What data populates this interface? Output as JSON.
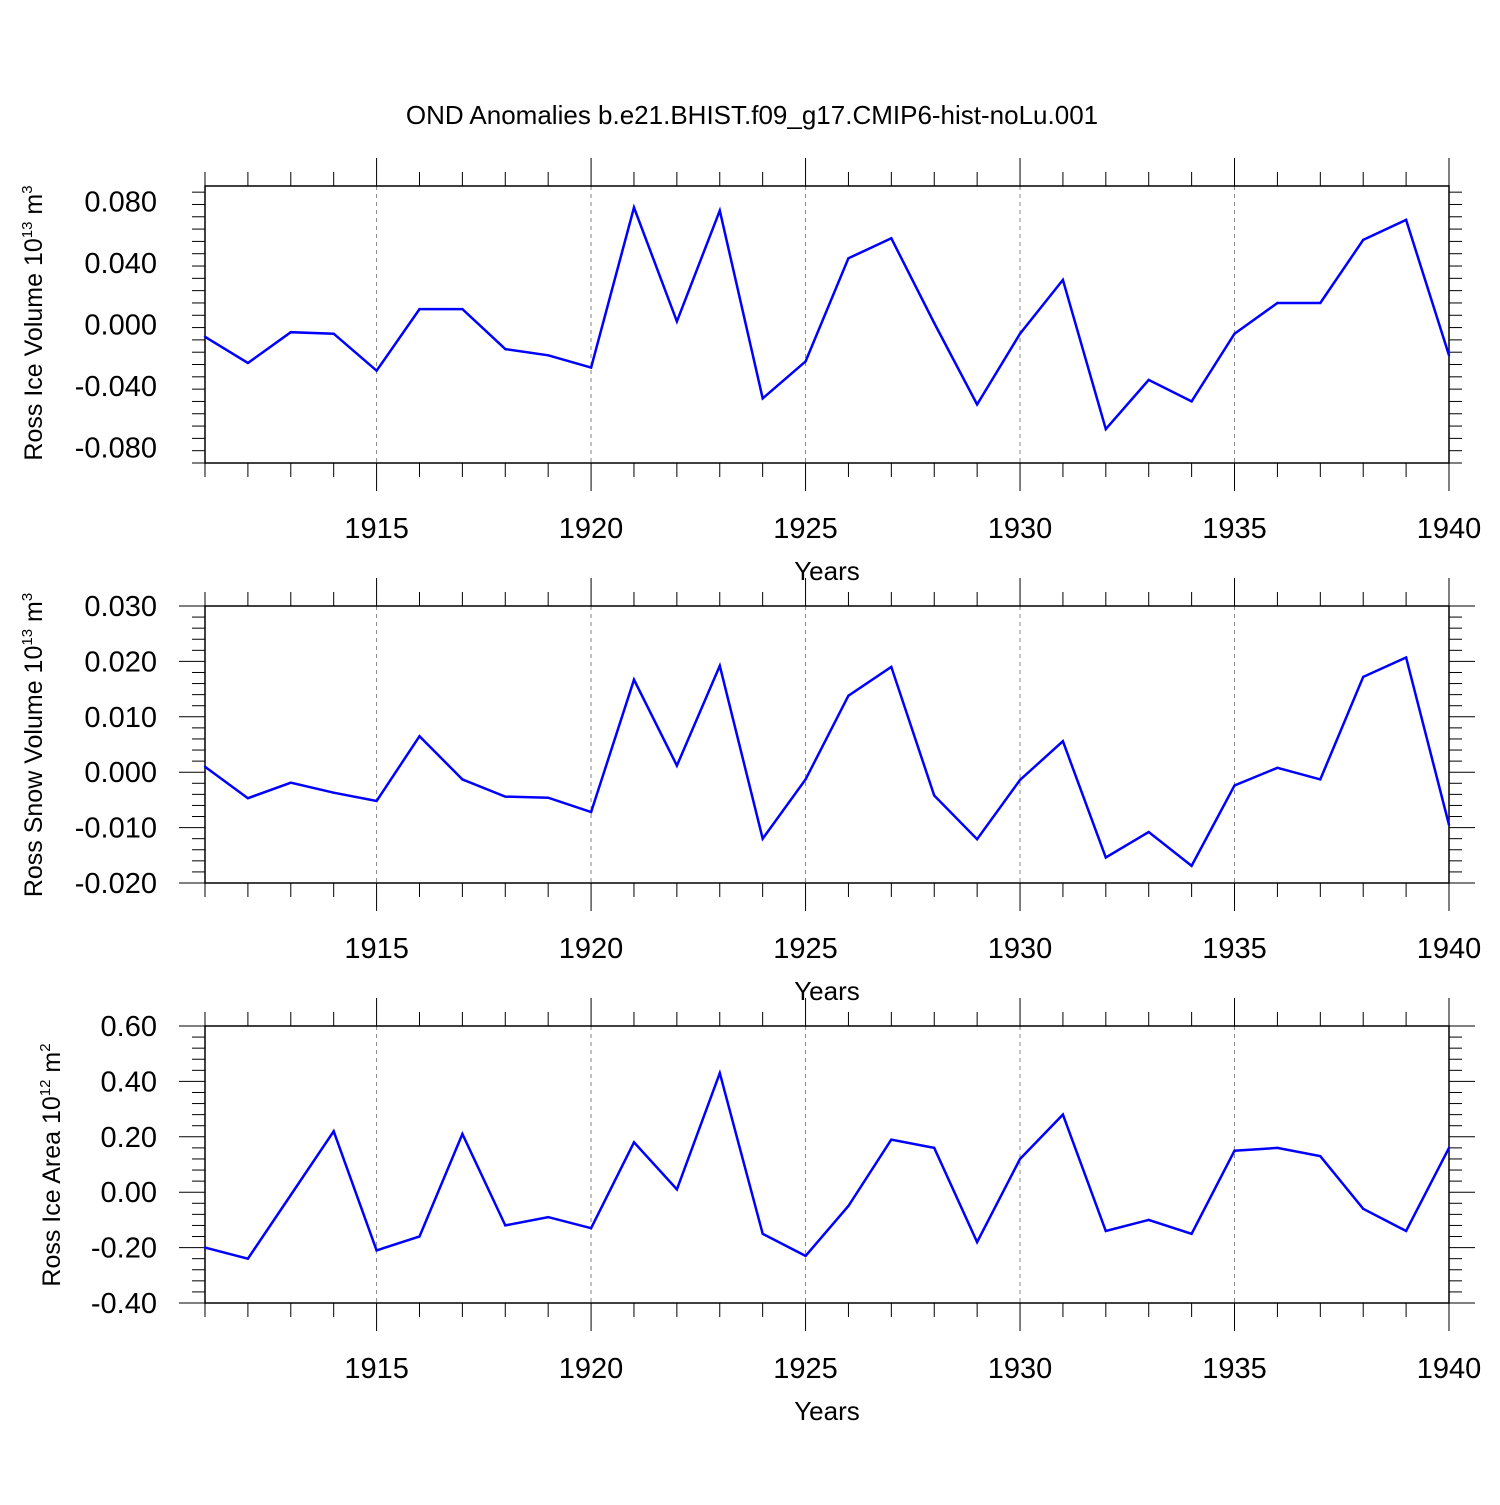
{
  "title": "OND Anomalies b.e21.BHIST.f09_g17.CMIP6-hist-noLu.001",
  "line_color": "#0000ff",
  "grid_color": "#888888",
  "chart_data": [
    {
      "type": "line",
      "ylabel_main": "Ross Ice Volume 10",
      "ylabel_exp": "13",
      "ylabel_unit": " m",
      "ylabel_unit_exp": "3",
      "xlabel": "Years",
      "xlim": [
        1911,
        1940
      ],
      "ylim": [
        -0.09,
        0.09
      ],
      "yticks": [
        -0.08,
        -0.04,
        0.0,
        0.04,
        0.08
      ],
      "ytick_labels": [
        "-0.080",
        "-0.040",
        "0.000",
        "0.040",
        "0.080"
      ],
      "xticks": [
        1915,
        1920,
        1925,
        1930,
        1935,
        1940
      ],
      "xtick_labels": [
        "1915",
        "1920",
        "1925",
        "1930",
        "1935",
        "1940"
      ],
      "grid": "vertical dashed at major x ticks",
      "x": [
        1911,
        1912,
        1913,
        1914,
        1915,
        1916,
        1917,
        1918,
        1919,
        1920,
        1921,
        1922,
        1923,
        1924,
        1925,
        1926,
        1927,
        1928,
        1929,
        1930,
        1931,
        1932,
        1933,
        1934,
        1935,
        1936,
        1937,
        1938,
        1939,
        1940
      ],
      "values": [
        -0.008,
        -0.025,
        -0.005,
        -0.006,
        -0.03,
        0.01,
        0.01,
        -0.016,
        -0.02,
        -0.028,
        0.076,
        0.002,
        0.074,
        -0.048,
        -0.024,
        0.043,
        0.056,
        0.001,
        -0.052,
        -0.006,
        0.029,
        -0.068,
        -0.036,
        -0.05,
        -0.006,
        0.014,
        0.014,
        0.055,
        0.068,
        -0.02
      ]
    },
    {
      "type": "line",
      "ylabel_main": "Ross Snow Volume 10",
      "ylabel_exp": "13",
      "ylabel_unit": " m",
      "ylabel_unit_exp": "3",
      "xlabel": "Years",
      "xlim": [
        1911,
        1940
      ],
      "ylim": [
        -0.02,
        0.03
      ],
      "yticks": [
        -0.02,
        -0.01,
        0.0,
        0.01,
        0.02,
        0.03
      ],
      "ytick_labels": [
        "-0.020",
        "-0.010",
        "0.000",
        "0.010",
        "0.020",
        "0.030"
      ],
      "xticks": [
        1915,
        1920,
        1925,
        1930,
        1935,
        1940
      ],
      "xtick_labels": [
        "1915",
        "1920",
        "1925",
        "1930",
        "1935",
        "1940"
      ],
      "grid": "vertical dashed at major x ticks",
      "x": [
        1911,
        1912,
        1913,
        1914,
        1915,
        1916,
        1917,
        1918,
        1919,
        1920,
        1921,
        1922,
        1923,
        1924,
        1925,
        1926,
        1927,
        1928,
        1929,
        1930,
        1931,
        1932,
        1933,
        1934,
        1935,
        1936,
        1937,
        1938,
        1939,
        1940
      ],
      "values": [
        0.001,
        -0.0047,
        -0.0019,
        -0.0037,
        -0.0052,
        0.0065,
        -0.0013,
        -0.0044,
        -0.0046,
        -0.0072,
        0.0167,
        0.0012,
        0.0192,
        -0.012,
        -0.0013,
        0.0138,
        0.019,
        -0.0042,
        -0.0121,
        -0.0014,
        0.0056,
        -0.0154,
        -0.0108,
        -0.0169,
        -0.0024,
        0.0008,
        -0.0013,
        0.0172,
        0.0207,
        -0.0095
      ]
    },
    {
      "type": "line",
      "ylabel_main": "Ross Ice Area 10",
      "ylabel_exp": "12",
      "ylabel_unit": " m",
      "ylabel_unit_exp": "2",
      "xlabel": "Years",
      "xlim": [
        1911,
        1940
      ],
      "ylim": [
        -0.4,
        0.6
      ],
      "yticks": [
        -0.4,
        -0.2,
        0.0,
        0.2,
        0.4,
        0.6
      ],
      "ytick_labels": [
        "-0.40",
        "-0.20",
        "0.00",
        "0.20",
        "0.40",
        "0.60"
      ],
      "xticks": [
        1915,
        1920,
        1925,
        1930,
        1935,
        1940
      ],
      "xtick_labels": [
        "1915",
        "1920",
        "1925",
        "1930",
        "1935",
        "1940"
      ],
      "grid": "vertical dashed at major x ticks",
      "x": [
        1911,
        1912,
        1913,
        1914,
        1915,
        1916,
        1917,
        1918,
        1919,
        1920,
        1921,
        1922,
        1923,
        1924,
        1925,
        1926,
        1927,
        1928,
        1929,
        1930,
        1931,
        1932,
        1933,
        1934,
        1935,
        1936,
        1937,
        1938,
        1939,
        1940
      ],
      "values": [
        -0.2,
        -0.24,
        -0.01,
        0.22,
        -0.21,
        -0.16,
        0.21,
        -0.12,
        -0.09,
        -0.13,
        0.18,
        0.01,
        0.43,
        -0.15,
        -0.23,
        -0.05,
        0.19,
        0.16,
        -0.18,
        0.12,
        0.28,
        -0.14,
        -0.1,
        -0.15,
        0.15,
        0.16,
        0.13,
        -0.06,
        -0.14,
        0.16
      ]
    }
  ]
}
